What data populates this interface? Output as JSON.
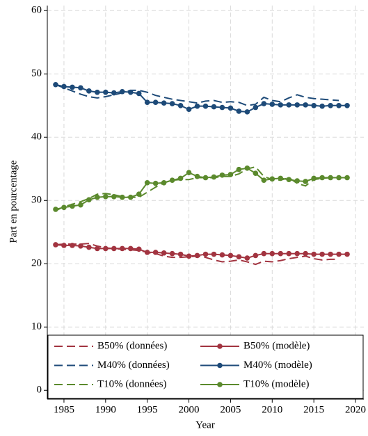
{
  "chart_data": {
    "type": "line",
    "x_label": "Year",
    "y_label": "Part en pourcentage",
    "x": [
      1984,
      1985,
      1986,
      1987,
      1988,
      1989,
      1990,
      1991,
      1992,
      1993,
      1994,
      1995,
      1996,
      1997,
      1998,
      1999,
      2000,
      2001,
      2002,
      2003,
      2004,
      2005,
      2006,
      2007,
      2008,
      2009,
      2010,
      2011,
      2012,
      2013,
      2014,
      2015,
      2016,
      2017,
      2018,
      2019
    ],
    "xlim": [
      1983,
      2021
    ],
    "xticks": [
      1985,
      1990,
      1995,
      2000,
      2005,
      2010,
      2015,
      2020
    ],
    "ylim": [
      -1.4,
      60.8
    ],
    "yticks": [
      0,
      10,
      20,
      30,
      40,
      50,
      60
    ],
    "grid": true,
    "series": [
      {
        "name": "B50% (données)",
        "color": "#a23440",
        "linestyle": "dashed",
        "marker": false,
        "values": [
          23.0,
          23.1,
          23.1,
          23.1,
          23.2,
          22.8,
          22.5,
          22.4,
          22.3,
          22.2,
          22.1,
          21.8,
          21.6,
          21.2,
          21.0,
          21.0,
          21.1,
          21.2,
          21.0,
          20.6,
          20.3,
          20.4,
          20.6,
          20.3,
          19.9,
          20.4,
          20.3,
          20.5,
          20.8,
          21.0,
          21.2,
          20.8,
          20.6,
          20.7,
          20.7,
          null
        ]
      },
      {
        "name": "B50% (modèle)",
        "color": "#a23440",
        "linestyle": "solid",
        "marker": true,
        "values": [
          23.0,
          22.9,
          22.9,
          22.8,
          22.6,
          22.4,
          22.4,
          22.4,
          22.4,
          22.4,
          22.3,
          21.8,
          21.8,
          21.7,
          21.6,
          21.5,
          21.2,
          21.3,
          21.5,
          21.5,
          21.4,
          21.3,
          21.1,
          20.9,
          21.3,
          21.6,
          21.6,
          21.6,
          21.6,
          21.6,
          21.6,
          21.5,
          21.5,
          21.5,
          21.5,
          21.5
        ]
      },
      {
        "name": "M40% (données)",
        "color": "#1d4a78",
        "linestyle": "dashed",
        "marker": false,
        "values": [
          48.3,
          47.8,
          47.3,
          46.8,
          46.4,
          46.2,
          46.4,
          46.7,
          47.0,
          47.4,
          47.4,
          47.1,
          46.6,
          46.3,
          46.0,
          45.8,
          45.6,
          45.4,
          45.7,
          45.8,
          45.5,
          45.6,
          45.5,
          45.0,
          45.2,
          46.3,
          45.8,
          45.6,
          46.2,
          46.7,
          46.3,
          46.1,
          46.0,
          45.9,
          45.8,
          null
        ]
      },
      {
        "name": "M40% (modèle)",
        "color": "#1d4a78",
        "linestyle": "solid",
        "marker": true,
        "values": [
          48.3,
          48.0,
          47.9,
          47.8,
          47.3,
          47.1,
          47.1,
          47.0,
          47.2,
          47.1,
          46.9,
          45.5,
          45.5,
          45.4,
          45.3,
          45.0,
          44.4,
          44.9,
          44.9,
          44.8,
          44.7,
          44.6,
          44.1,
          44.0,
          44.7,
          45.3,
          45.2,
          45.1,
          45.1,
          45.1,
          45.1,
          45.0,
          44.9,
          45.0,
          45.0,
          45.0
        ]
      },
      {
        "name": "T10% (données)",
        "color": "#5b8a2d",
        "linestyle": "dashed",
        "marker": false,
        "values": [
          28.4,
          29.0,
          29.4,
          29.8,
          30.3,
          31.0,
          31.1,
          30.9,
          30.6,
          30.5,
          30.5,
          31.3,
          32.1,
          32.8,
          33.2,
          33.3,
          33.3,
          33.6,
          33.6,
          33.6,
          33.8,
          33.8,
          34.2,
          35.0,
          35.3,
          33.8,
          33.3,
          33.2,
          33.6,
          32.7,
          32.3,
          33.3,
          33.5,
          33.6,
          33.6,
          null
        ]
      },
      {
        "name": "T10% (modèle)",
        "color": "#5b8a2d",
        "linestyle": "solid",
        "marker": true,
        "values": [
          28.6,
          28.9,
          29.1,
          29.3,
          30.1,
          30.5,
          30.6,
          30.6,
          30.5,
          30.5,
          31.0,
          32.8,
          32.7,
          32.8,
          33.2,
          33.5,
          34.4,
          33.8,
          33.6,
          33.7,
          34.0,
          34.1,
          34.9,
          35.1,
          34.3,
          33.2,
          33.4,
          33.5,
          33.3,
          33.1,
          33.0,
          33.5,
          33.6,
          33.6,
          33.6,
          33.6
        ]
      }
    ]
  }
}
